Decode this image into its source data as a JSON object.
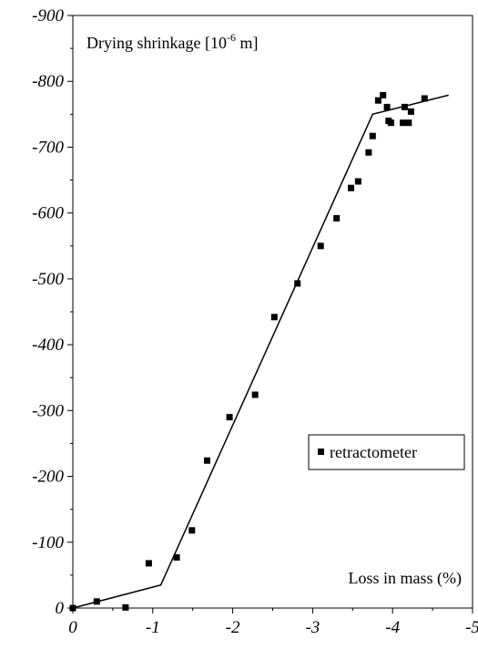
{
  "chart_data": {
    "type": "scatter",
    "title": "",
    "ylabel": "Drying shrinkage [10",
    "ylabel_exponent": "-6",
    "ylabel_unit": " m]",
    "xlabel": "Loss in mass (%)",
    "xlim": [
      0,
      -5
    ],
    "ylim": [
      0,
      -900
    ],
    "x_ticks": [
      0,
      -1,
      -2,
      -3,
      -4,
      -5
    ],
    "y_ticks": [
      0,
      -100,
      -200,
      -300,
      -400,
      -500,
      -600,
      -700,
      -800,
      -900
    ],
    "grid": false,
    "legend_position": "right",
    "series": [
      {
        "name": "retractometer",
        "marker": "square",
        "points": [
          [
            0.0,
            0
          ],
          [
            -0.3,
            -10
          ],
          [
            -0.66,
            -1
          ],
          [
            -0.95,
            -68
          ],
          [
            -1.3,
            -77
          ],
          [
            -1.49,
            -118
          ],
          [
            -1.68,
            -224
          ],
          [
            -1.96,
            -290
          ],
          [
            -2.28,
            -324
          ],
          [
            -2.52,
            -442
          ],
          [
            -2.81,
            -493
          ],
          [
            -3.1,
            -550
          ],
          [
            -3.3,
            -592
          ],
          [
            -3.48,
            -638
          ],
          [
            -3.57,
            -648
          ],
          [
            -3.7,
            -692
          ],
          [
            -3.75,
            -717
          ],
          [
            -3.82,
            -771
          ],
          [
            -3.88,
            -779
          ],
          [
            -3.93,
            -761
          ],
          [
            -3.95,
            -740
          ],
          [
            -3.98,
            -737
          ],
          [
            -4.13,
            -737
          ],
          [
            -4.15,
            -761
          ],
          [
            -4.2,
            -737
          ],
          [
            -4.23,
            -754
          ],
          [
            -4.4,
            -774
          ]
        ]
      }
    ],
    "fit_line": {
      "points": [
        [
          0.0,
          0
        ],
        [
          -1.1,
          -35
        ],
        [
          -3.75,
          -750
        ],
        [
          -4.7,
          -779
        ]
      ]
    }
  }
}
